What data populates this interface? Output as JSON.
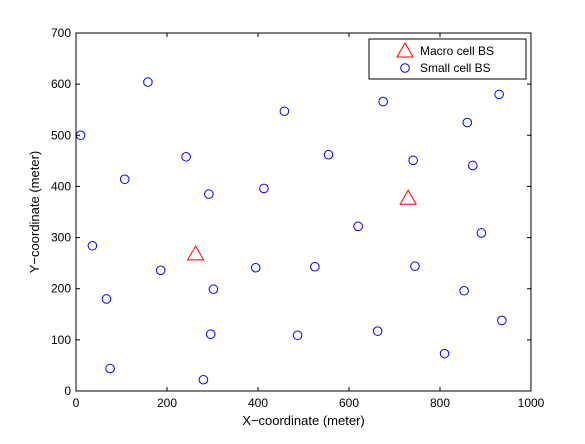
{
  "chart_data": {
    "type": "scatter",
    "title": "",
    "xlabel": "X−coordinate (meter)",
    "ylabel": "Y−coordinate (meter)",
    "xlim": [
      0,
      1000
    ],
    "ylim": [
      0,
      700
    ],
    "xticks": [
      "0",
      "200",
      "400",
      "600",
      "800",
      "1000"
    ],
    "yticks": [
      "0",
      "100",
      "200",
      "300",
      "400",
      "500",
      "600",
      "700"
    ],
    "grid": false,
    "legend_position": "top-right",
    "series": [
      {
        "name": "Macro cell BS",
        "marker": "triangle",
        "color": "#ff0000",
        "points": [
          {
            "x": 263,
            "y": 268
          },
          {
            "x": 730,
            "y": 377
          }
        ]
      },
      {
        "name": "Small cell BS",
        "marker": "circle",
        "color": "#0000ff",
        "points": [
          {
            "x": 10,
            "y": 500
          },
          {
            "x": 158,
            "y": 604
          },
          {
            "x": 107,
            "y": 414
          },
          {
            "x": 36,
            "y": 284
          },
          {
            "x": 67,
            "y": 180
          },
          {
            "x": 75,
            "y": 44
          },
          {
            "x": 186,
            "y": 236
          },
          {
            "x": 242,
            "y": 458
          },
          {
            "x": 292,
            "y": 385
          },
          {
            "x": 302,
            "y": 199
          },
          {
            "x": 296,
            "y": 111
          },
          {
            "x": 280,
            "y": 22
          },
          {
            "x": 458,
            "y": 547
          },
          {
            "x": 413,
            "y": 396
          },
          {
            "x": 395,
            "y": 241
          },
          {
            "x": 487,
            "y": 109
          },
          {
            "x": 525,
            "y": 243
          },
          {
            "x": 555,
            "y": 462
          },
          {
            "x": 620,
            "y": 322
          },
          {
            "x": 663,
            "y": 117
          },
          {
            "x": 675,
            "y": 566
          },
          {
            "x": 741,
            "y": 451
          },
          {
            "x": 745,
            "y": 244
          },
          {
            "x": 810,
            "y": 73
          },
          {
            "x": 853,
            "y": 196
          },
          {
            "x": 860,
            "y": 525
          },
          {
            "x": 872,
            "y": 441
          },
          {
            "x": 891,
            "y": 309
          },
          {
            "x": 930,
            "y": 580
          },
          {
            "x": 936,
            "y": 138
          }
        ]
      }
    ]
  }
}
